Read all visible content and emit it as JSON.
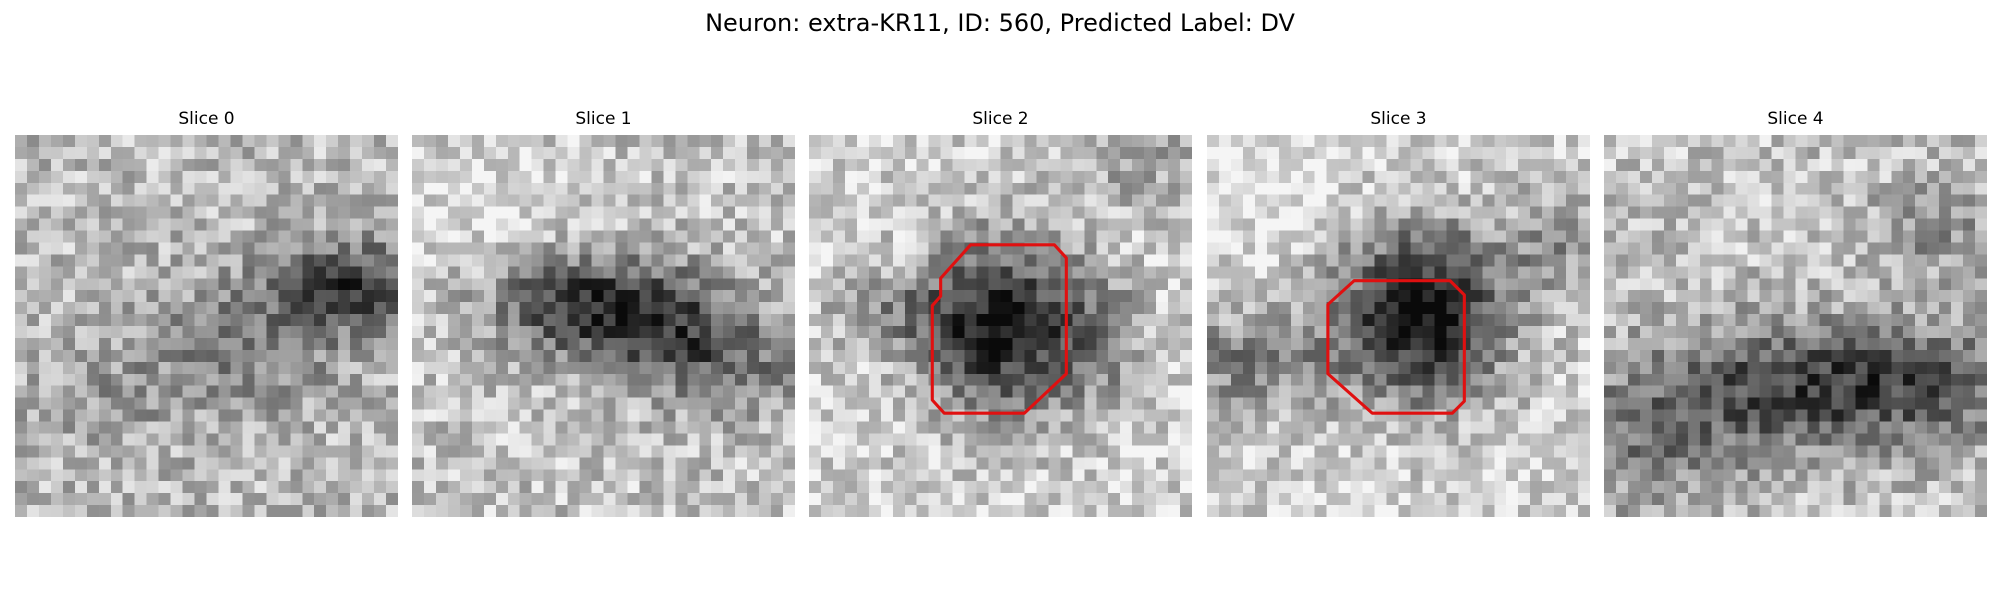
{
  "figure": {
    "title": "Neuron: extra-KR11, ID: 560, Predicted Label: DV"
  },
  "panels": [
    {
      "title": "Slice 0",
      "has_contour": false,
      "contour_color": "#e01010"
    },
    {
      "title": "Slice 1",
      "has_contour": false,
      "contour_color": "#e01010"
    },
    {
      "title": "Slice 2",
      "has_contour": true,
      "contour_color": "#e01010"
    },
    {
      "title": "Slice 3",
      "has_contour": true,
      "contour_color": "#e01010"
    },
    {
      "title": "Slice 4",
      "has_contour": false,
      "contour_color": "#e01010"
    }
  ],
  "colormap": "gray"
}
